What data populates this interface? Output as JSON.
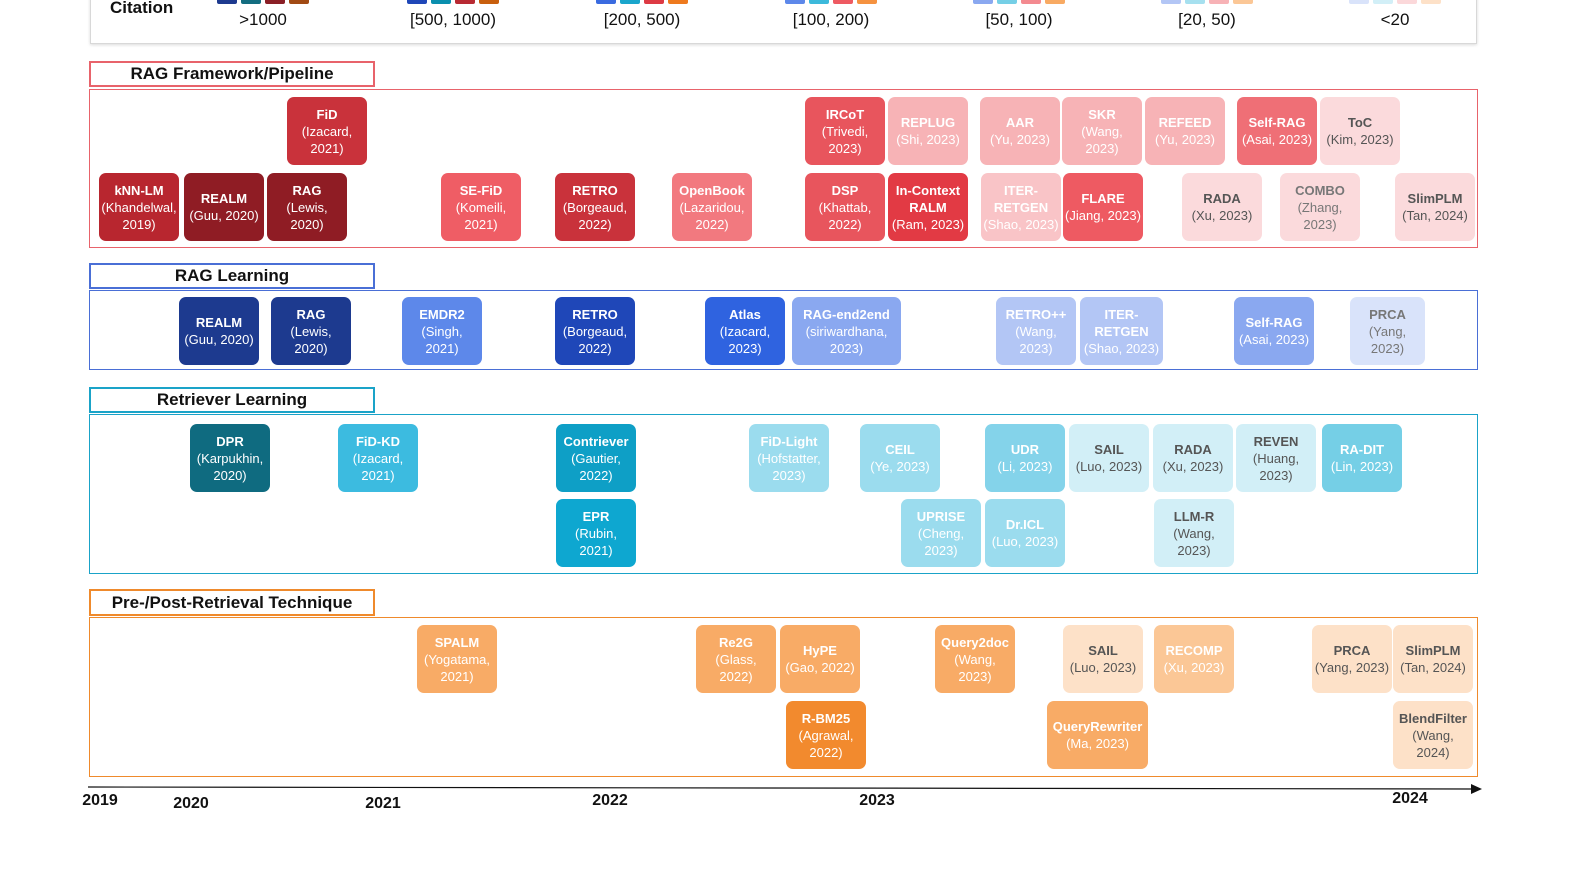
{
  "legend": {
    "title": "Citation",
    "items": [
      {
        "label": ">1000",
        "swatches": [
          "#1d3a8f",
          "#136d80",
          "#8a1f26",
          "#a14a14"
        ]
      },
      {
        "label": "[500, 1000)",
        "swatches": [
          "#1f47b8",
          "#0a8fae",
          "#b82a33",
          "#c85f0e"
        ]
      },
      {
        "label": "[200, 500)",
        "swatches": [
          "#3a6be0",
          "#1aa6cc",
          "#dd3a44",
          "#ee7a1e"
        ]
      },
      {
        "label": "[100, 200)",
        "swatches": [
          "#5d88ea",
          "#3cb9db",
          "#ee5a62",
          "#f59240"
        ]
      },
      {
        "label": "[50, 100)",
        "swatches": [
          "#8aa8f0",
          "#75cfe6",
          "#f38a90",
          "#f8aa63"
        ]
      },
      {
        "label": "[20, 50)",
        "swatches": [
          "#b3c6f5",
          "#a6e0ef",
          "#f7b2b6",
          "#fbc796"
        ]
      },
      {
        "label": "<20",
        "swatches": [
          "#d9e3fa",
          "#d2eff7",
          "#fbd8da",
          "#fde1c8"
        ]
      }
    ]
  },
  "sections": [
    {
      "title": "RAG Framework/Pipeline",
      "color": "#e8636b"
    },
    {
      "title": "RAG Learning",
      "color": "#4a6fd6"
    },
    {
      "title": "Retriever Learning",
      "color": "#1aa3c8"
    },
    {
      "title": "Pre-/Post-Retrieval Technique",
      "color": "#ef8a2c"
    }
  ],
  "cards": [
    {
      "name": "FiD",
      "cite": "(Izacard, 2021)",
      "color": "#c9323b",
      "text": "#fff",
      "section": 0
    },
    {
      "name": "IRCoT",
      "cite": "(Trivedi, 2023)",
      "color": "#e8555d",
      "text": "#fff",
      "section": 0
    },
    {
      "name": "REPLUG",
      "cite": "(Shi, 2023)",
      "color": "#f7b3b6",
      "text": "#fff",
      "section": 0
    },
    {
      "name": "AAR",
      "cite": "(Yu, 2023)",
      "color": "#f7b3b6",
      "text": "#fff",
      "section": 0
    },
    {
      "name": "SKR",
      "cite": "(Wang, 2023)",
      "color": "#f7b3b6",
      "text": "#fff",
      "section": 0
    },
    {
      "name": "REFEED",
      "cite": "(Yu, 2023)",
      "color": "#f7b3b6",
      "text": "#fff",
      "section": 0
    },
    {
      "name": "Self-RAG",
      "cite": "(Asai, 2023)",
      "color": "#ef6f76",
      "text": "#fff",
      "section": 0
    },
    {
      "name": "ToC",
      "cite": "(Kim, 2023)",
      "color": "#fbdadc",
      "text": "#555",
      "section": 0
    },
    {
      "name": "kNN-LM",
      "cite": "(Khandelwal, 2019)",
      "color": "#b8262f",
      "text": "#fff",
      "section": 0
    },
    {
      "name": "REALM",
      "cite": "(Guu, 2020)",
      "color": "#8f1c24",
      "text": "#fff",
      "section": 0
    },
    {
      "name": "RAG",
      "cite": "(Lewis, 2020)",
      "color": "#8f1c24",
      "text": "#fff",
      "section": 0
    },
    {
      "name": "SE-FiD",
      "cite": "(Komeili, 2021)",
      "color": "#ef5d65",
      "text": "#fff",
      "section": 0
    },
    {
      "name": "RETRO",
      "cite": "(Borgeaud, 2022)",
      "color": "#c9323b",
      "text": "#fff",
      "section": 0
    },
    {
      "name": "OpenBook",
      "cite": "(Lazaridou, 2022)",
      "color": "#f2797f",
      "text": "#fff",
      "section": 0
    },
    {
      "name": "DSP",
      "cite": "(Khattab, 2022)",
      "color": "#e8555d",
      "text": "#fff",
      "section": 0
    },
    {
      "name": "In-Context RALM",
      "cite": "(Ram, 2023)",
      "color": "#e23a44",
      "text": "#fff",
      "section": 0
    },
    {
      "name": "ITER-RETGEN",
      "cite": "(Shao, 2023)",
      "color": "#f9c4c7",
      "text": "#fff",
      "section": 0
    },
    {
      "name": "FLARE",
      "cite": "(Jiang, 2023)",
      "color": "#ee5a62",
      "text": "#fff",
      "section": 0
    },
    {
      "name": "RADA",
      "cite": "(Xu, 2023)",
      "color": "#fbdadc",
      "text": "#555",
      "section": 0
    },
    {
      "name": "COMBO",
      "cite": "(Zhang, 2023)",
      "color": "#fbdadc",
      "text": "#777",
      "section": 0
    },
    {
      "name": "SlimPLM",
      "cite": "(Tan, 2024)",
      "color": "#fbdadc",
      "text": "#555",
      "section": 0
    },
    {
      "name": "REALM",
      "cite": "(Guu, 2020)",
      "color": "#1d3a8f",
      "text": "#fff",
      "section": 1
    },
    {
      "name": "RAG",
      "cite": "(Lewis, 2020)",
      "color": "#1d3a8f",
      "text": "#fff",
      "section": 1
    },
    {
      "name": "EMDR2",
      "cite": "(Singh, 2021)",
      "color": "#5d88ea",
      "text": "#fff",
      "section": 1
    },
    {
      "name": "RETRO",
      "cite": "(Borgeaud, 2022)",
      "color": "#1f47b8",
      "text": "#fff",
      "section": 1
    },
    {
      "name": "Atlas",
      "cite": "(Izacard, 2023)",
      "color": "#2f63e0",
      "text": "#fff",
      "section": 1
    },
    {
      "name": "RAG-end2end",
      "cite": "(siriwardhana, 2023)",
      "color": "#8aa8f0",
      "text": "#fff",
      "section": 1
    },
    {
      "name": "RETRO++",
      "cite": "(Wang, 2023)",
      "color": "#b3c6f5",
      "text": "#fff",
      "section": 1
    },
    {
      "name": "ITER-RETGEN",
      "cite": "(Shao, 2023)",
      "color": "#b3c6f5",
      "text": "#fff",
      "section": 1
    },
    {
      "name": "Self-RAG",
      "cite": "(Asai, 2023)",
      "color": "#8aa8f0",
      "text": "#fff",
      "section": 1
    },
    {
      "name": "PRCA",
      "cite": "(Yang, 2023)",
      "color": "#d9e3fa",
      "text": "#777",
      "section": 1
    },
    {
      "name": "DPR",
      "cite": "(Karpukhin, 2020)",
      "color": "#0f6b80",
      "text": "#fff",
      "section": 2
    },
    {
      "name": "FiD-KD",
      "cite": "(Izacard, 2021)",
      "color": "#3cbbe0",
      "text": "#fff",
      "section": 2
    },
    {
      "name": "Contriever",
      "cite": "(Gautier, 2022)",
      "color": "#0e9fc6",
      "text": "#fff",
      "section": 2
    },
    {
      "name": "FiD-Light",
      "cite": "(Hofstatter, 2023)",
      "color": "#9bdcee",
      "text": "#fff",
      "section": 2
    },
    {
      "name": "CEIL",
      "cite": "(Ye, 2023)",
      "color": "#9bdcee",
      "text": "#fff",
      "section": 2
    },
    {
      "name": "UDR",
      "cite": "(Li, 2023)",
      "color": "#84d3ea",
      "text": "#fff",
      "section": 2
    },
    {
      "name": "SAIL",
      "cite": "(Luo, 2023)",
      "color": "#d2eff7",
      "text": "#555",
      "section": 2
    },
    {
      "name": "RADA",
      "cite": "(Xu, 2023)",
      "color": "#d2eff7",
      "text": "#555",
      "section": 2
    },
    {
      "name": "REVEN",
      "cite": "(Huang, 2023)",
      "color": "#d2eff7",
      "text": "#555",
      "section": 2
    },
    {
      "name": "RA-DIT",
      "cite": "(Lin, 2023)",
      "color": "#75cfe6",
      "text": "#fff",
      "section": 2
    },
    {
      "name": "EPR",
      "cite": "(Rubin, 2021)",
      "color": "#0ea7d0",
      "text": "#fff",
      "section": 2
    },
    {
      "name": "UPRISE",
      "cite": "(Cheng, 2023)",
      "color": "#9bdcee",
      "text": "#fff",
      "section": 2
    },
    {
      "name": "Dr.ICL",
      "cite": "(Luo, 2023)",
      "color": "#9bdcee",
      "text": "#fff",
      "section": 2
    },
    {
      "name": "LLM-R",
      "cite": "(Wang, 2023)",
      "color": "#d2eff7",
      "text": "#555",
      "section": 2
    },
    {
      "name": "SPALM",
      "cite": "(Yogatama, 2021)",
      "color": "#f8ab66",
      "text": "#fff",
      "section": 3
    },
    {
      "name": "Re2G",
      "cite": "(Glass, 2022)",
      "color": "#f8ab66",
      "text": "#fff",
      "section": 3
    },
    {
      "name": "HyPE",
      "cite": "(Gao, 2022)",
      "color": "#f8ab66",
      "text": "#fff",
      "section": 3
    },
    {
      "name": "Query2doc",
      "cite": "(Wang, 2023)",
      "color": "#f8ab66",
      "text": "#fff",
      "section": 3
    },
    {
      "name": "SAIL",
      "cite": "(Luo, 2023)",
      "color": "#fde1c8",
      "text": "#555",
      "section": 3
    },
    {
      "name": "RECOMP",
      "cite": "(Xu, 2023)",
      "color": "#fbc796",
      "text": "#fff",
      "section": 3
    },
    {
      "name": "PRCA",
      "cite": "(Yang, 2023)",
      "color": "#fde1c8",
      "text": "#555",
      "section": 3
    },
    {
      "name": "SlimPLM",
      "cite": "(Tan, 2024)",
      "color": "#fde1c8",
      "text": "#555",
      "section": 3
    },
    {
      "name": "R-BM25",
      "cite": "(Agrawal, 2022)",
      "color": "#f28a2e",
      "text": "#fff",
      "section": 3
    },
    {
      "name": "QueryRewriter",
      "cite": "(Ma, 2023)",
      "color": "#f8ab66",
      "text": "#fff",
      "section": 3
    },
    {
      "name": "BlendFilter",
      "cite": "(Wang, 2024)",
      "color": "#fde1c8",
      "text": "#555",
      "section": 3
    }
  ],
  "timeline": {
    "labels": [
      "2019",
      "2020",
      "2021",
      "2022",
      "2023",
      "2024"
    ]
  }
}
